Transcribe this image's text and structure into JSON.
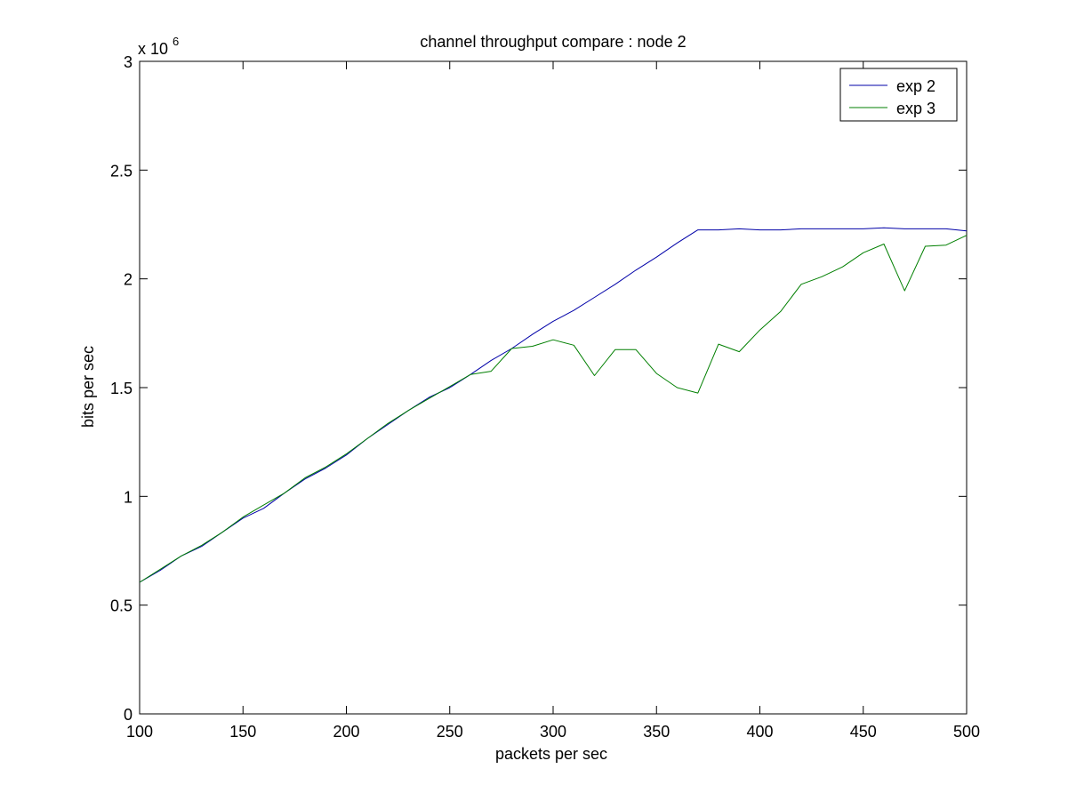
{
  "chart_data": {
    "type": "line",
    "title": "channel throughput compare : node 2",
    "xlabel": "packets per sec",
    "ylabel": "bits per sec",
    "y_multiplier": {
      "base": "x 10",
      "exponent": "6"
    },
    "xlim": [
      100,
      500
    ],
    "ylim": [
      0,
      3000000
    ],
    "x_ticks": [
      100,
      150,
      200,
      250,
      300,
      350,
      400,
      450,
      500
    ],
    "x_tick_labels": [
      "100",
      "150",
      "200",
      "250",
      "300",
      "350",
      "400",
      "450",
      "500"
    ],
    "y_ticks": [
      0,
      500000,
      1000000,
      1500000,
      2000000,
      2500000,
      3000000
    ],
    "y_tick_labels": [
      "0",
      "0.5",
      "1",
      "1.5",
      "2",
      "2.5",
      "3"
    ],
    "grid": false,
    "legend_position": "top-right",
    "x": [
      100,
      110,
      120,
      130,
      140,
      150,
      160,
      170,
      180,
      190,
      200,
      210,
      220,
      230,
      240,
      250,
      260,
      270,
      280,
      290,
      300,
      310,
      320,
      330,
      340,
      350,
      360,
      370,
      380,
      390,
      400,
      410,
      420,
      430,
      440,
      450,
      460,
      470,
      480,
      490,
      500
    ],
    "series": [
      {
        "name": "exp 2",
        "color": "#0000a8",
        "values": [
          605000,
          660000,
          725000,
          770000,
          835000,
          900000,
          945000,
          1015000,
          1080000,
          1130000,
          1190000,
          1265000,
          1330000,
          1395000,
          1455000,
          1500000,
          1560000,
          1625000,
          1680000,
          1745000,
          1805000,
          1855000,
          1915000,
          1975000,
          2040000,
          2100000,
          2165000,
          2225000,
          2225000,
          2230000,
          2225000,
          2225000,
          2230000,
          2230000,
          2230000,
          2230000,
          2235000,
          2230000,
          2230000,
          2230000,
          2220000
        ]
      },
      {
        "name": "exp 3",
        "color": "#007f00",
        "values": [
          605000,
          665000,
          725000,
          775000,
          835000,
          905000,
          960000,
          1015000,
          1085000,
          1135000,
          1195000,
          1265000,
          1335000,
          1395000,
          1450000,
          1505000,
          1560000,
          1575000,
          1680000,
          1690000,
          1720000,
          1695000,
          1555000,
          1675000,
          1675000,
          1565000,
          1500000,
          1475000,
          1700000,
          1665000,
          1765000,
          1850000,
          1975000,
          2010000,
          2055000,
          2120000,
          2160000,
          1945000,
          2150000,
          2155000,
          2200000
        ]
      }
    ]
  }
}
